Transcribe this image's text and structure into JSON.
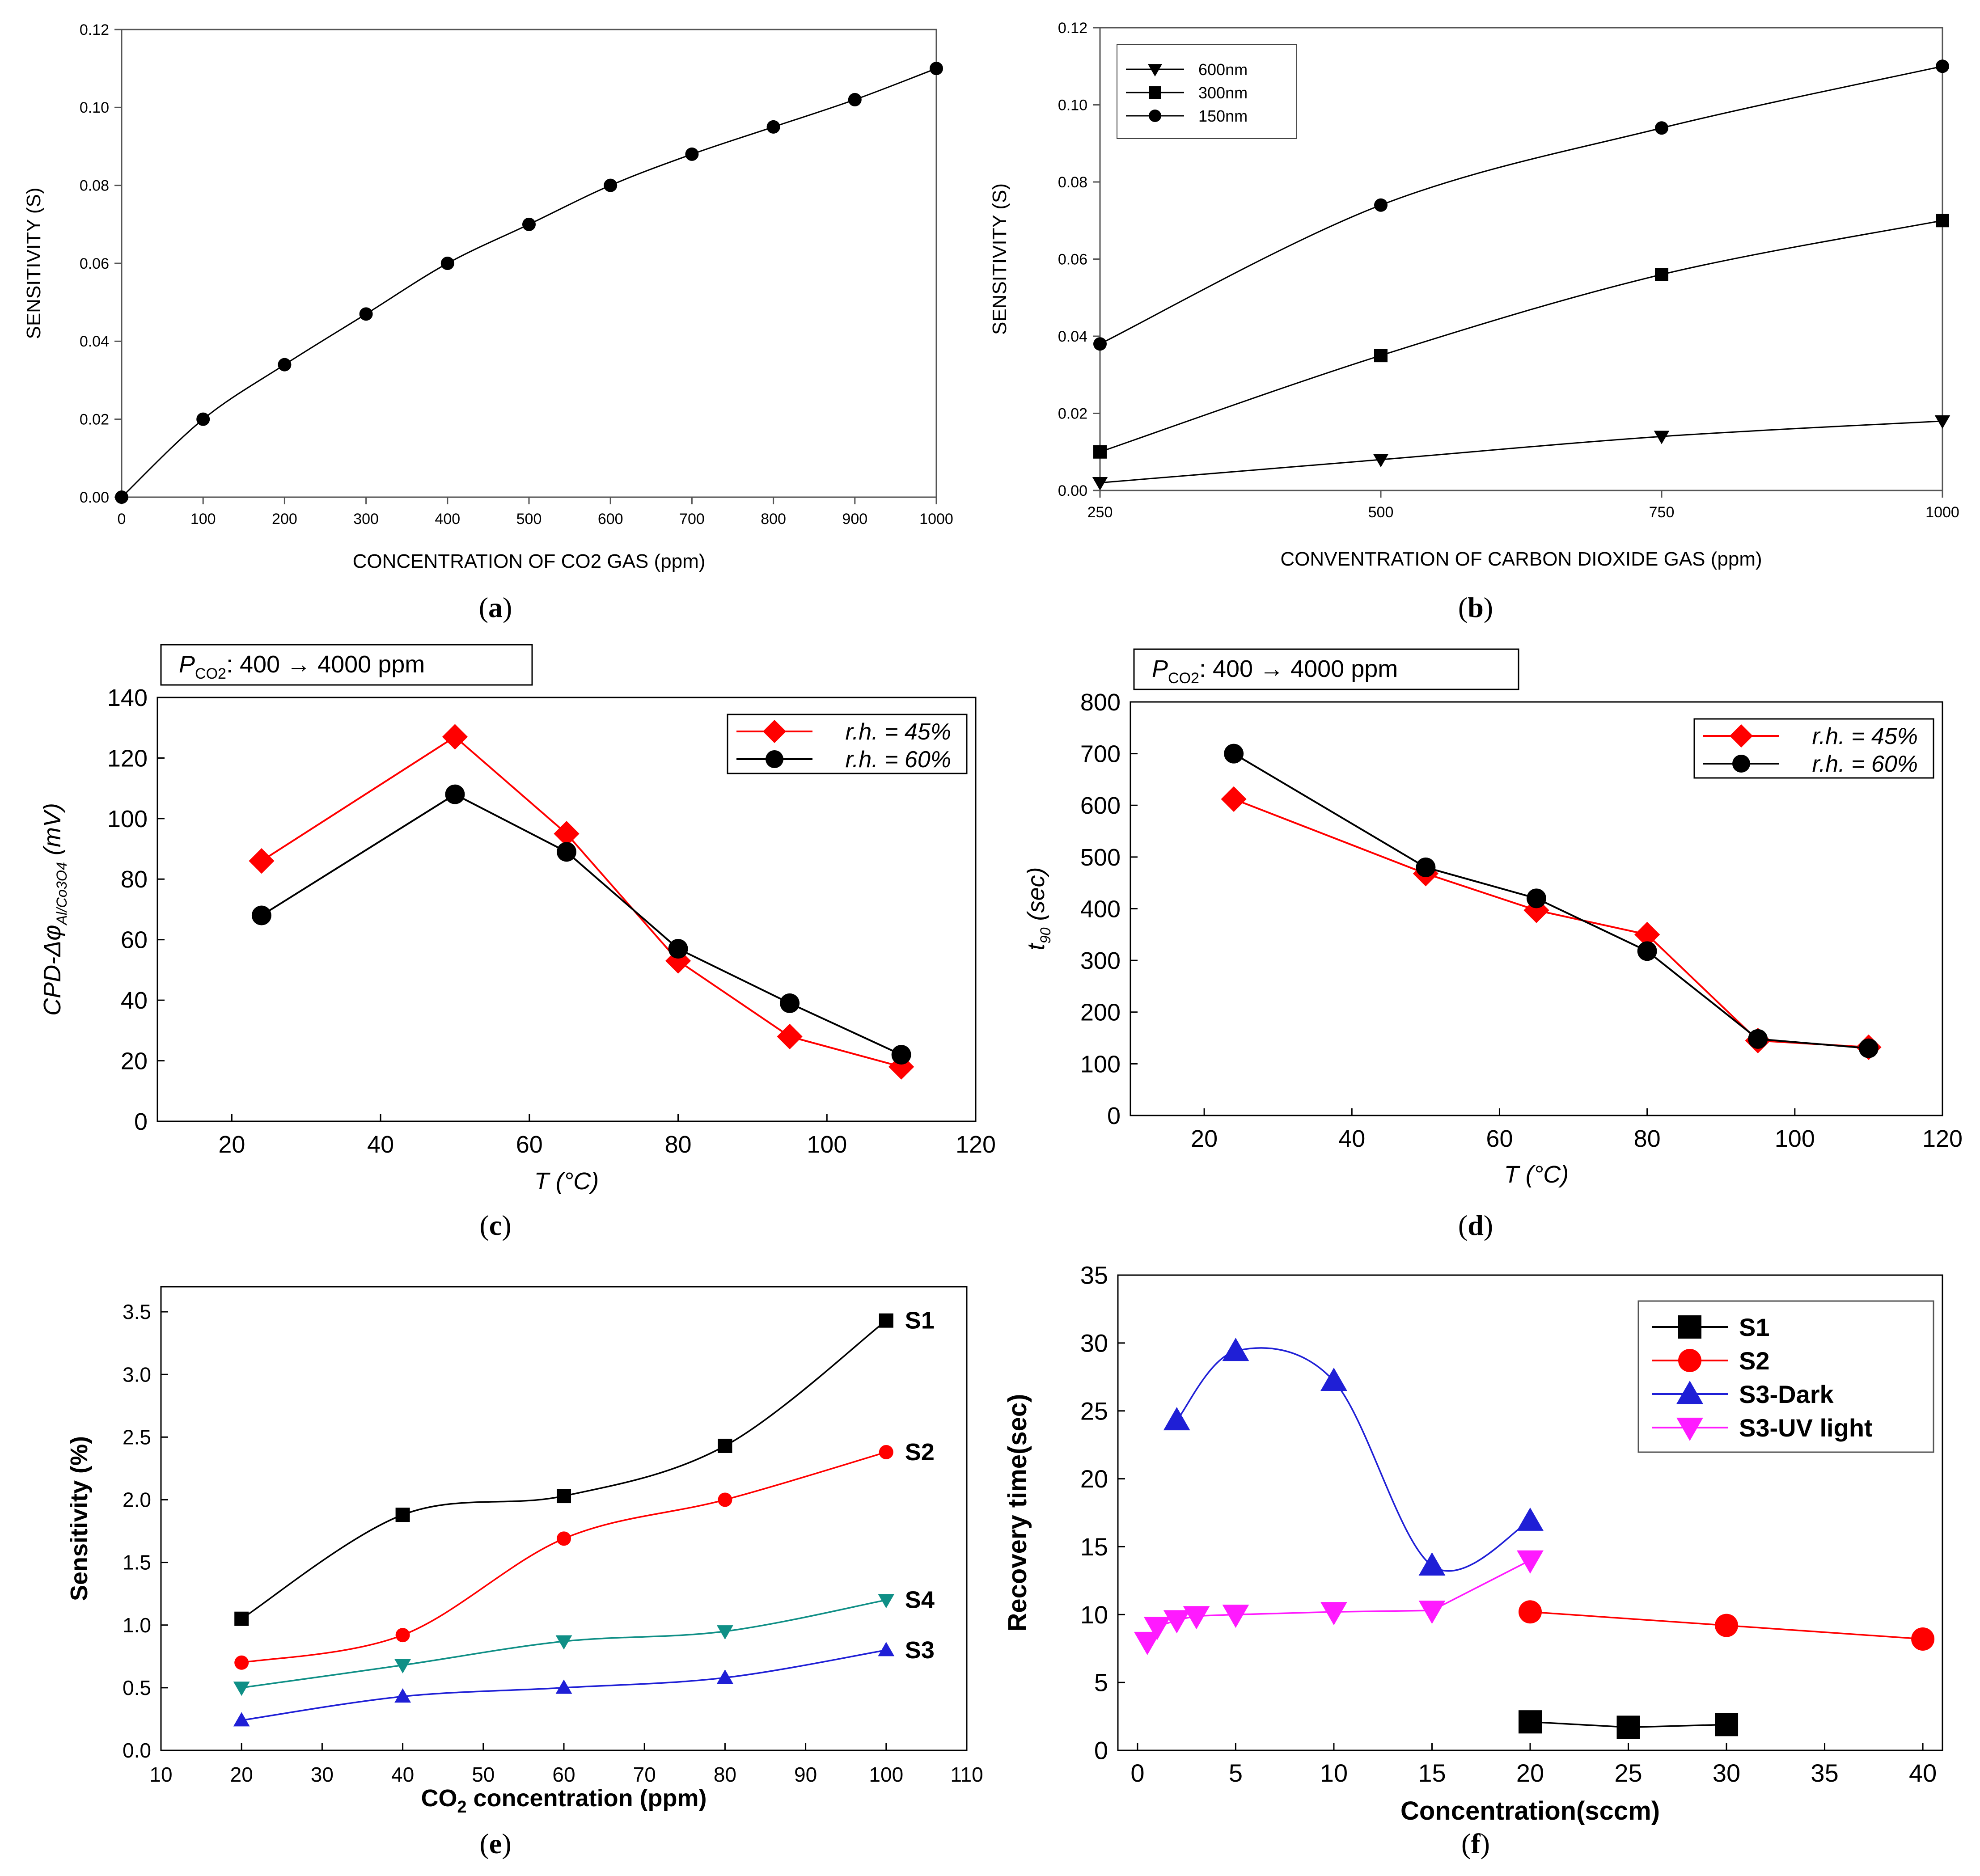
{
  "colors": {
    "black": "#000000",
    "red": "#ff0000",
    "blue": "#1f1fd6",
    "teal": "#0f8f86",
    "magenta": "#ff1aff",
    "frame_gray": "#555555"
  },
  "chart_data": [
    {
      "panel": "a",
      "caption_letter": "a",
      "type": "line",
      "title": "",
      "xlabel": "CONCENTRATION OF CO2 GAS (ppm)",
      "ylabel": "SENSITIVITY (S)",
      "xlim": [
        0,
        1000
      ],
      "ylim": [
        0,
        0.12
      ],
      "xticks": [
        0,
        100,
        200,
        300,
        400,
        500,
        600,
        700,
        800,
        900,
        1000
      ],
      "xtick_labels": [
        "0",
        "100",
        "200",
        "300",
        "400",
        "500",
        "600",
        "700",
        "800",
        "900",
        "1000"
      ],
      "yticks": [
        0,
        0.02,
        0.04,
        0.06,
        0.08,
        0.1,
        0.12
      ],
      "ytick_labels": [
        "0.00",
        "0.02",
        "0.04",
        "0.06",
        "0.08",
        "0.10",
        "0.12"
      ],
      "series": [
        {
          "name": "sensitivity",
          "color": "#000000",
          "marker": "circle",
          "x": [
            0,
            100,
            200,
            300,
            400,
            500,
            600,
            700,
            800,
            900,
            1000
          ],
          "y": [
            0,
            0.02,
            0.034,
            0.047,
            0.06,
            0.07,
            0.08,
            0.088,
            0.095,
            0.102,
            0.11
          ]
        }
      ]
    },
    {
      "panel": "b",
      "caption_letter": "b",
      "type": "line",
      "title": "",
      "xlabel": "CONVENTRATION OF CARBON DIOXIDE GAS (ppm)",
      "ylabel": "SENSITIVITY (S)",
      "xlim": [
        250,
        1000
      ],
      "ylim": [
        0,
        0.12
      ],
      "xticks": [
        250,
        500,
        750,
        1000
      ],
      "xtick_labels": [
        "250",
        "500",
        "750",
        "1000"
      ],
      "yticks": [
        0,
        0.02,
        0.04,
        0.06,
        0.08,
        0.1,
        0.12
      ],
      "ytick_labels": [
        "0.00",
        "0.02",
        "0.04",
        "0.06",
        "0.08",
        "0.10",
        "0.12"
      ],
      "legend_position": "top-left",
      "series": [
        {
          "name": "600nm",
          "color": "#000000",
          "marker": "triangle-down",
          "x": [
            250,
            500,
            750,
            1000
          ],
          "y": [
            0.002,
            0.008,
            0.014,
            0.018
          ]
        },
        {
          "name": "300nm",
          "color": "#000000",
          "marker": "square",
          "x": [
            250,
            500,
            750,
            1000
          ],
          "y": [
            0.01,
            0.035,
            0.056,
            0.07
          ]
        },
        {
          "name": "150nm",
          "color": "#000000",
          "marker": "circle",
          "x": [
            250,
            500,
            750,
            1000
          ],
          "y": [
            0.038,
            0.074,
            0.094,
            0.11
          ]
        }
      ]
    },
    {
      "panel": "c",
      "caption_letter": "c",
      "type": "line",
      "title": "",
      "header_box": {
        "symbol": "P",
        "subscript": "CO2",
        "text": ": 400 → 4000 ppm"
      },
      "xlabel": "T (°C)",
      "ylabel_main": "CPD-Δφ",
      "ylabel_sub": "Al/Co3O4",
      "ylabel_unit": " (mV)",
      "xlim": [
        10,
        120
      ],
      "ylim": [
        0,
        140
      ],
      "xticks": [
        20,
        40,
        60,
        80,
        100,
        120
      ],
      "xtick_labels": [
        "20",
        "40",
        "60",
        "80",
        "100",
        "120"
      ],
      "yticks": [
        0,
        20,
        40,
        60,
        80,
        100,
        120,
        140
      ],
      "ytick_labels": [
        "0",
        "20",
        "40",
        "60",
        "80",
        "100",
        "120",
        "140"
      ],
      "legend_position": "top-right",
      "series": [
        {
          "name": "r.h. = 45%",
          "color": "#ff0000",
          "marker": "diamond",
          "x": [
            24,
            50,
            65,
            80,
            95,
            110
          ],
          "y": [
            86,
            127,
            95,
            53,
            28,
            18
          ]
        },
        {
          "name": "r.h. = 60%",
          "color": "#000000",
          "marker": "circle",
          "x": [
            24,
            50,
            65,
            80,
            95,
            110
          ],
          "y": [
            68,
            108,
            89,
            57,
            39,
            22
          ]
        }
      ]
    },
    {
      "panel": "d",
      "caption_letter": "d",
      "type": "line",
      "title": "",
      "header_box": {
        "symbol": "P",
        "subscript": "CO2",
        "text": ": 400 → 4000 ppm"
      },
      "xlabel": "T (°C)",
      "ylabel_main": "t",
      "ylabel_sub": "90",
      "ylabel_unit": " (sec)",
      "xlim": [
        10,
        120
      ],
      "ylim": [
        0,
        800
      ],
      "xticks": [
        20,
        40,
        60,
        80,
        100,
        120
      ],
      "xtick_labels": [
        "20",
        "40",
        "60",
        "80",
        "100",
        "120"
      ],
      "yticks": [
        0,
        100,
        200,
        300,
        400,
        500,
        600,
        700,
        800
      ],
      "ytick_labels": [
        "0",
        "100",
        "200",
        "300",
        "400",
        "500",
        "600",
        "700",
        "800"
      ],
      "legend_position": "top-right",
      "series": [
        {
          "name": "r.h. = 45%",
          "color": "#ff0000",
          "marker": "diamond",
          "x": [
            24,
            50,
            65,
            80,
            95,
            110
          ],
          "y": [
            612,
            468,
            397,
            350,
            145,
            132
          ]
        },
        {
          "name": "r.h. = 60%",
          "color": "#000000",
          "marker": "circle",
          "x": [
            24,
            50,
            65,
            80,
            95,
            110
          ],
          "y": [
            700,
            480,
            420,
            318,
            148,
            130
          ]
        }
      ]
    },
    {
      "panel": "e",
      "caption_letter": "e",
      "type": "line",
      "title": "",
      "xlabel_main": "CO",
      "xlabel_sub": "2",
      "xlabel_rest": " concentration (ppm)",
      "ylabel": "Sensitivity (%)",
      "xlim": [
        10,
        110
      ],
      "ylim": [
        0,
        3.7
      ],
      "xticks": [
        10,
        20,
        30,
        40,
        50,
        60,
        70,
        80,
        90,
        100,
        110
      ],
      "xtick_labels": [
        "10",
        "20",
        "30",
        "40",
        "50",
        "60",
        "70",
        "80",
        "90",
        "100",
        "110"
      ],
      "yticks": [
        0,
        0.5,
        1.0,
        1.5,
        2.0,
        2.5,
        3.0,
        3.5
      ],
      "ytick_labels": [
        "0.0",
        "0.5",
        "1.0",
        "1.5",
        "2.0",
        "2.5",
        "3.0",
        "3.5"
      ],
      "series": [
        {
          "name": "S1",
          "color": "#000000",
          "marker": "square",
          "x": [
            20,
            40,
            60,
            80,
            100
          ],
          "y": [
            1.05,
            1.88,
            2.03,
            2.43,
            3.43
          ]
        },
        {
          "name": "S2",
          "color": "#ff0000",
          "marker": "circle",
          "x": [
            20,
            40,
            60,
            80,
            100
          ],
          "y": [
            0.7,
            0.92,
            1.69,
            2.0,
            2.38
          ]
        },
        {
          "name": "S4",
          "color": "#0f8f86",
          "marker": "triangle-down",
          "x": [
            20,
            40,
            60,
            80,
            100
          ],
          "y": [
            0.5,
            0.68,
            0.87,
            0.95,
            1.2
          ]
        },
        {
          "name": "S3",
          "color": "#1f1fd6",
          "marker": "triangle-up",
          "x": [
            20,
            40,
            60,
            80,
            100
          ],
          "y": [
            0.24,
            0.43,
            0.5,
            0.58,
            0.8
          ]
        }
      ]
    },
    {
      "panel": "f",
      "caption_letter": "f",
      "type": "line",
      "title": "",
      "xlabel": "Concentration(sccm)",
      "ylabel": "Recovery time(sec)",
      "xlim": [
        -1,
        41
      ],
      "ylim": [
        0,
        35
      ],
      "xticks": [
        0,
        5,
        10,
        15,
        20,
        25,
        30,
        35,
        40
      ],
      "xtick_labels": [
        "0",
        "5",
        "10",
        "15",
        "20",
        "25",
        "30",
        "35",
        "40"
      ],
      "yticks": [
        0,
        5,
        10,
        15,
        20,
        25,
        30,
        35
      ],
      "ytick_labels": [
        "0",
        "5",
        "10",
        "15",
        "20",
        "25",
        "30",
        "35"
      ],
      "legend_position": "top-right",
      "series": [
        {
          "name": "S1",
          "color": "#000000",
          "marker": "square",
          "x": [
            20,
            25,
            30
          ],
          "y": [
            2.1,
            1.7,
            1.9
          ]
        },
        {
          "name": "S2",
          "color": "#ff0000",
          "marker": "circle",
          "x": [
            20,
            30,
            40
          ],
          "y": [
            10.2,
            9.2,
            8.2
          ]
        },
        {
          "name": "S3-Dark",
          "color": "#1f1fd6",
          "marker": "triangle-up",
          "x": [
            2,
            5,
            10,
            15,
            20
          ],
          "y": [
            24.3,
            29.4,
            27.2,
            13.6,
            16.9
          ]
        },
        {
          "name": "S3-UV light",
          "color": "#ff1aff",
          "marker": "triangle-down",
          "x": [
            0.5,
            1,
            2,
            3,
            5,
            10,
            15,
            20
          ],
          "y": [
            8.0,
            9.1,
            9.6,
            9.9,
            10.0,
            10.2,
            10.3,
            14.0
          ]
        }
      ]
    }
  ]
}
